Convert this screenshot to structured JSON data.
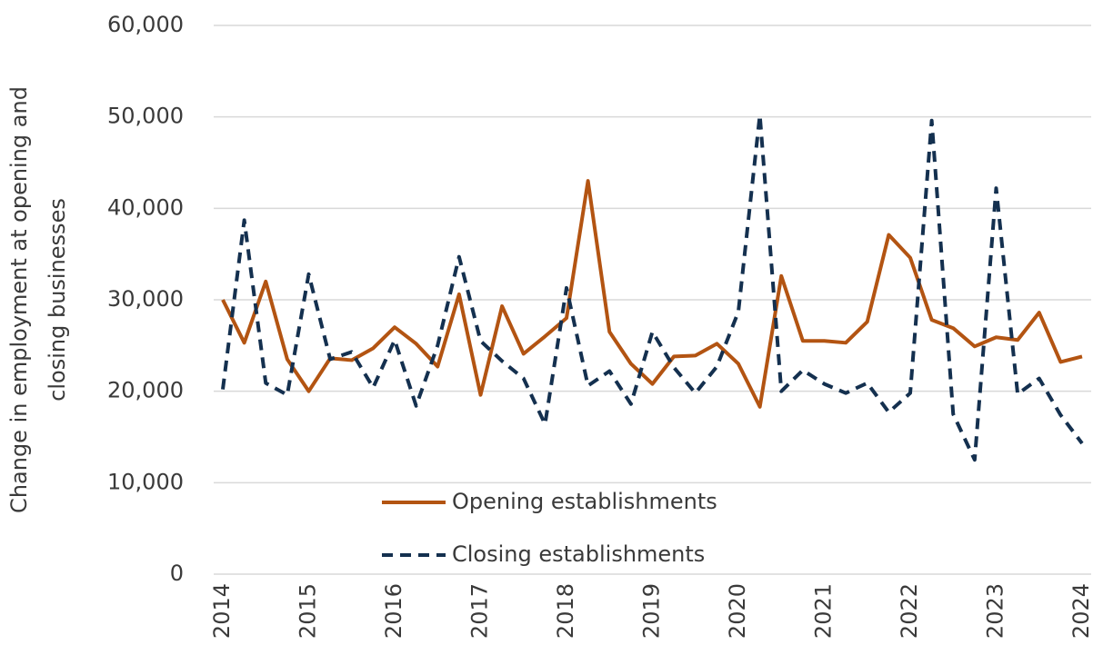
{
  "chart_data": {
    "type": "line",
    "y_label": [
      "Change in employment at opening and",
      "closing businesses"
    ],
    "categories": [
      "2014",
      null,
      null,
      null,
      "2015",
      null,
      null,
      null,
      "2016",
      null,
      null,
      null,
      "2017",
      null,
      null,
      null,
      "2018",
      null,
      null,
      null,
      "2019",
      null,
      null,
      null,
      "2020",
      null,
      null,
      null,
      "2021",
      null,
      null,
      null,
      "2022",
      null,
      null,
      null,
      "2023",
      null,
      null,
      null,
      "2024"
    ],
    "series": [
      {
        "name": "Opening establishments",
        "color": "#b35412",
        "dash": false,
        "values": [
          30000,
          25300,
          32000,
          23500,
          20000,
          23600,
          23400,
          24700,
          27000,
          25200,
          22700,
          30600,
          19600,
          29300,
          24100,
          26000,
          28000,
          43000,
          26500,
          23000,
          20800,
          23800,
          23900,
          25200,
          23000,
          18300,
          32600,
          25500,
          25500,
          25300,
          27600,
          37100,
          34600,
          27800,
          26900,
          24900,
          25900,
          25600,
          28600,
          23200,
          23800
        ]
      },
      {
        "name": "Closing establishments",
        "color": "#14304f",
        "dash": true,
        "values": [
          20200,
          38700,
          20900,
          19600,
          32800,
          23500,
          24300,
          20400,
          25600,
          18400,
          25000,
          34700,
          25500,
          23300,
          21400,
          16400,
          31300,
          20600,
          22200,
          18600,
          26500,
          22600,
          19800,
          22700,
          28700,
          50200,
          20000,
          22300,
          20800,
          19800,
          20900,
          17700,
          19800,
          49600,
          17500,
          12500,
          42200,
          19700,
          21400,
          17400,
          14300
        ]
      }
    ],
    "ylim": [
      0,
      60000
    ],
    "yticks": [
      0,
      {
        "value": 10000,
        "label": "10,000"
      },
      {
        "value": 20000,
        "label": "20,000"
      },
      {
        "value": 30000,
        "label": "30,000"
      },
      {
        "value": 40000,
        "label": "40,000"
      },
      {
        "value": 50000,
        "label": "50,000"
      },
      {
        "value": 60000,
        "label": "60,000"
      }
    ],
    "grid": true,
    "legend": "lower center"
  }
}
